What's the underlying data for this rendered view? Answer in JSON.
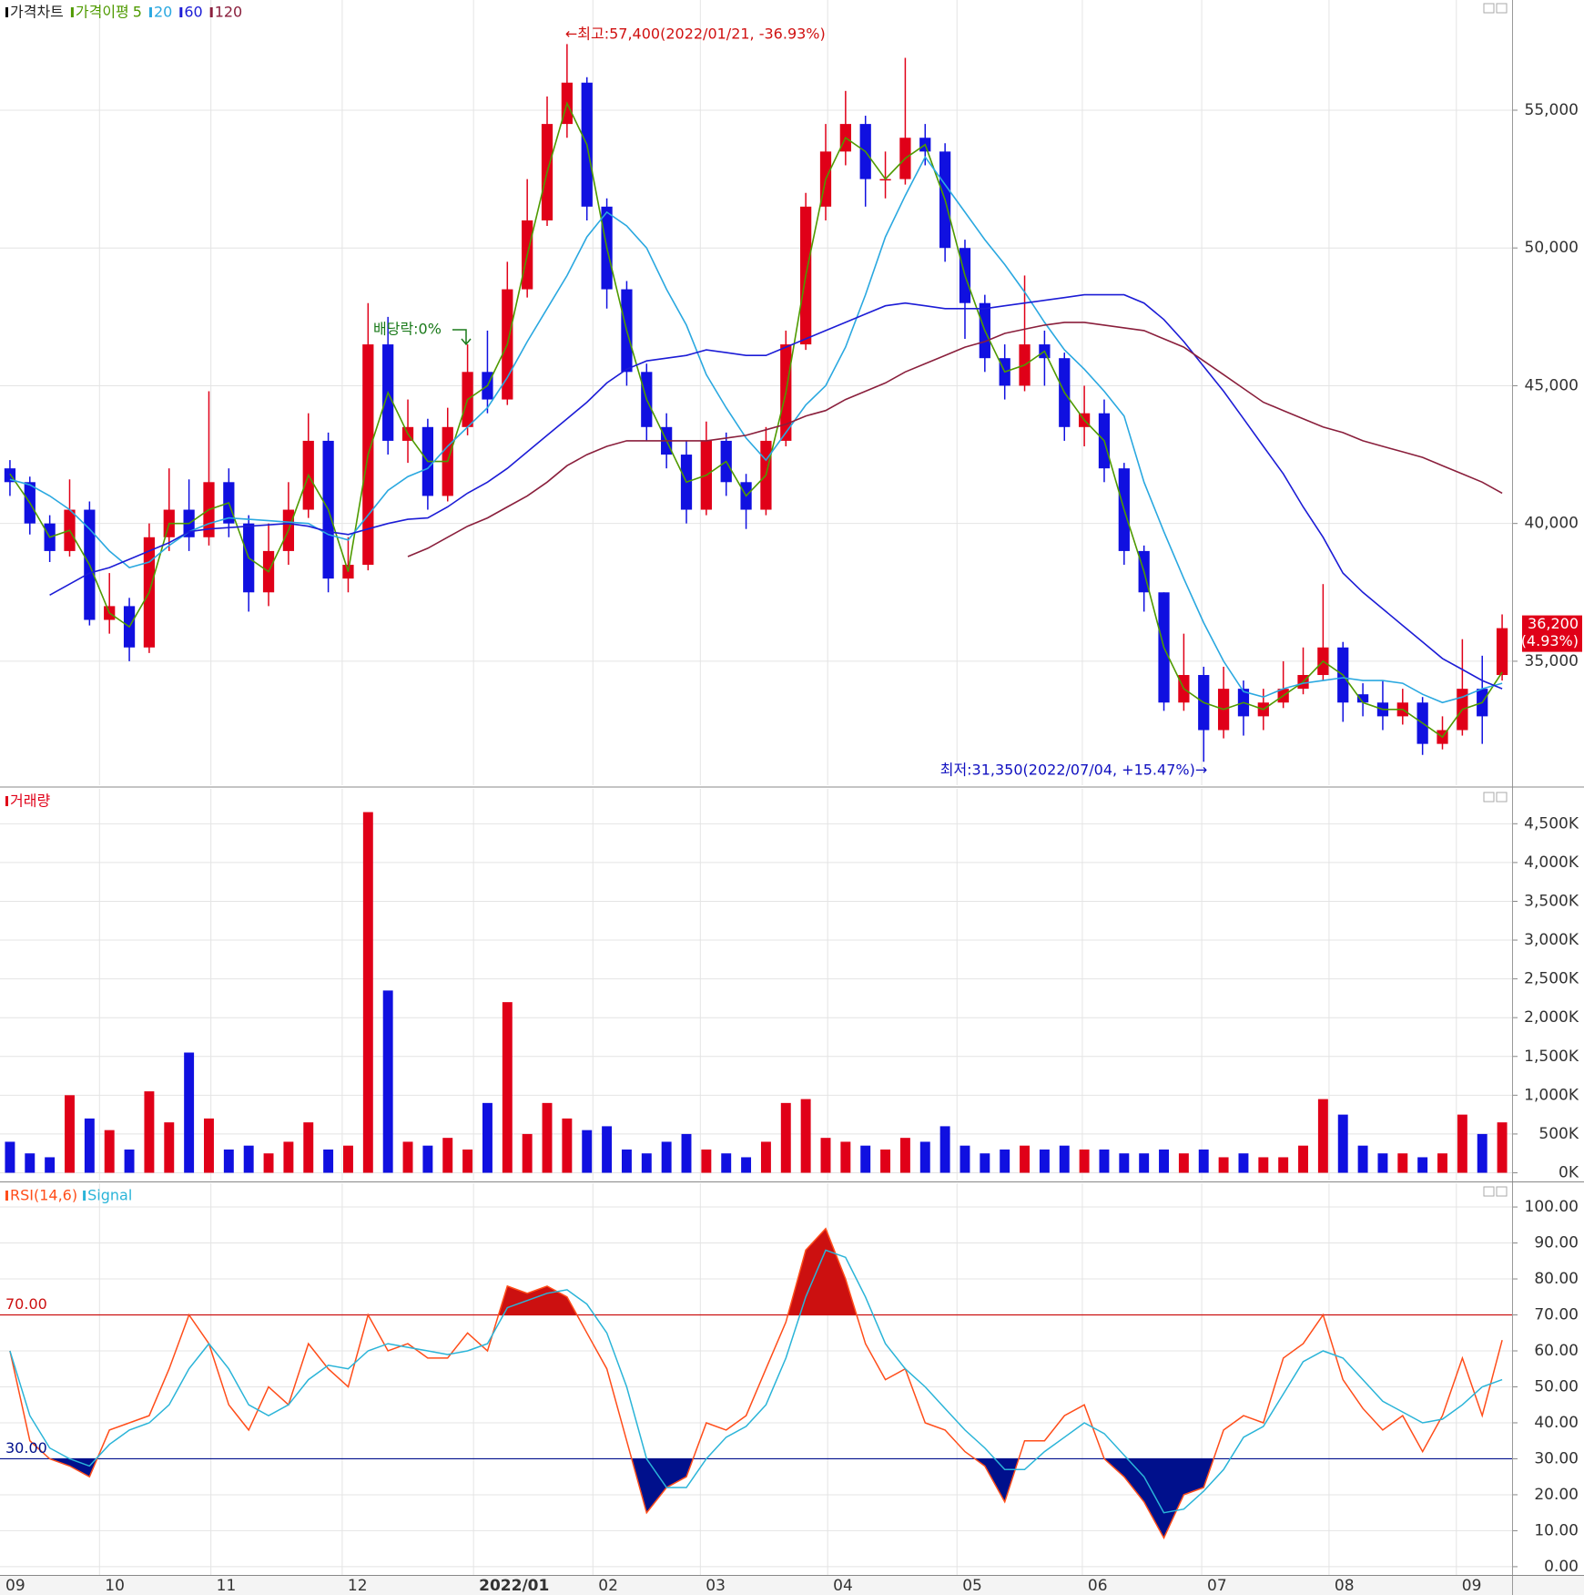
{
  "chart_data": [
    {
      "type": "candlestick",
      "title": "가격차트",
      "ma_label": "가격이평",
      "up_color": "#e00018",
      "down_color": "#1010e0",
      "open": [
        42000,
        41500,
        40000,
        39000,
        40500,
        36500,
        37000,
        35500,
        39500,
        40500,
        39500,
        41500,
        40000,
        37500,
        39000,
        40500,
        43000,
        38000,
        38500,
        46500,
        43000,
        43500,
        41000,
        43500,
        45500,
        44500,
        48500,
        51000,
        54500,
        56000,
        51500,
        48500,
        45500,
        43500,
        42500,
        40500,
        43000,
        41500,
        40500,
        43000,
        46500,
        51500,
        53500,
        54500,
        52500,
        52500,
        54000,
        53500,
        50000,
        48000,
        46000,
        45000,
        46500,
        46000,
        43500,
        44000,
        42000,
        39000,
        37500,
        33500,
        34500,
        32500,
        34000,
        33000,
        33500,
        34000,
        34500,
        35500,
        33800,
        33500,
        33000,
        33500,
        32000,
        32500,
        34000,
        34500
      ],
      "high": [
        42300,
        41700,
        40300,
        41600,
        40800,
        38200,
        37300,
        40000,
        42000,
        41600,
        44800,
        42000,
        40300,
        40000,
        41500,
        44000,
        43300,
        39500,
        48000,
        47500,
        44500,
        43800,
        44200,
        46500,
        47000,
        49500,
        52500,
        55500,
        57400,
        56200,
        51800,
        48800,
        45800,
        44000,
        43000,
        43700,
        43300,
        41800,
        43500,
        47000,
        52000,
        54500,
        55700,
        54800,
        53500,
        56900,
        54500,
        53800,
        50300,
        48300,
        46500,
        49000,
        47000,
        46200,
        45000,
        44500,
        42200,
        39200,
        37500,
        36000,
        34800,
        34800,
        34300,
        34000,
        35000,
        35500,
        37800,
        35700,
        34200,
        34300,
        34000,
        33700,
        33000,
        35800,
        35200,
        36700
      ],
      "low": [
        41000,
        39600,
        38600,
        38800,
        36300,
        36000,
        35000,
        35300,
        39000,
        39000,
        39200,
        39500,
        36800,
        37000,
        38500,
        40200,
        37500,
        37500,
        38300,
        42500,
        42200,
        40500,
        40800,
        43200,
        44000,
        44300,
        48200,
        50800,
        54000,
        51000,
        47800,
        45000,
        43000,
        42000,
        40000,
        40300,
        41000,
        39800,
        40300,
        42800,
        46300,
        51000,
        53000,
        51500,
        51800,
        52300,
        53000,
        49500,
        46700,
        45500,
        44500,
        44800,
        45000,
        43000,
        42800,
        41500,
        38500,
        36800,
        33200,
        33200,
        31350,
        32200,
        32300,
        32500,
        33300,
        33800,
        34300,
        32800,
        33000,
        32500,
        32700,
        31600,
        31800,
        32300,
        32000,
        34300
      ],
      "close": [
        41500,
        40000,
        39000,
        40500,
        36500,
        37000,
        35500,
        39500,
        40500,
        39500,
        41500,
        40000,
        37500,
        39000,
        40500,
        43000,
        38000,
        38500,
        46500,
        43000,
        43500,
        41000,
        43500,
        45500,
        44500,
        48500,
        51000,
        54500,
        56000,
        51500,
        48500,
        45500,
        43500,
        42500,
        40500,
        43000,
        41500,
        40500,
        43000,
        46500,
        51500,
        53500,
        54500,
        52500,
        52500,
        54000,
        53500,
        50000,
        48000,
        46000,
        45000,
        46500,
        46000,
        43500,
        44000,
        42000,
        39000,
        37500,
        33500,
        34500,
        32500,
        34000,
        33000,
        33500,
        34000,
        34500,
        35500,
        33500,
        33500,
        33000,
        33500,
        32000,
        32500,
        34000,
        33000,
        36200
      ],
      "series": [
        {
          "name": "5",
          "color": "#4f9a00",
          "values": [
            41800,
            40750,
            39500,
            39750,
            38500,
            36750,
            36250,
            37500,
            40000,
            40000,
            40500,
            40750,
            38750,
            38250,
            39750,
            41750,
            40500,
            38250,
            42500,
            44750,
            43250,
            42250,
            42250,
            44500,
            45000,
            46500,
            49750,
            52750,
            55250,
            53750,
            50000,
            47000,
            44500,
            43000,
            41500,
            41750,
            42250,
            41000,
            41750,
            44750,
            49000,
            52500,
            54000,
            53500,
            52500,
            53250,
            53750,
            51750,
            49000,
            47000,
            45500,
            45750,
            46250,
            44750,
            43750,
            43000,
            40500,
            38250,
            35500,
            34000,
            33500,
            33250,
            33500,
            33250,
            33750,
            34250,
            35000,
            34500,
            33500,
            33250,
            33250,
            32750,
            32250,
            33250,
            33500,
            34600
          ]
        },
        {
          "name": "20",
          "color": "#2aa8e0",
          "values": [
            41600,
            41400,
            41000,
            40500,
            39800,
            39000,
            38400,
            38600,
            39200,
            39700,
            40000,
            40200,
            40150,
            40100,
            40050,
            40000,
            39600,
            39400,
            40300,
            41200,
            41700,
            42000,
            42800,
            43500,
            44200,
            45300,
            46600,
            47800,
            49000,
            50400,
            51300,
            50800,
            50000,
            48500,
            47200,
            45400,
            44200,
            43100,
            42300,
            43300,
            44300,
            45000,
            46400,
            48300,
            50400,
            51900,
            53300,
            52300,
            51300,
            50300,
            49400,
            48400,
            47300,
            46300,
            45600,
            44800,
            43900,
            41500,
            39700,
            38000,
            36400,
            35000,
            33900,
            33700,
            34000,
            34200,
            34300,
            34400,
            34300,
            34300,
            34200,
            33800,
            33500,
            33700,
            34000,
            34200
          ]
        },
        {
          "name": "60",
          "color": "#1c1cd6",
          "values": [
            null,
            null,
            37400,
            37800,
            38200,
            38400,
            38700,
            39000,
            39300,
            39700,
            39800,
            39850,
            39900,
            39950,
            40000,
            39900,
            39700,
            39600,
            39800,
            40000,
            40150,
            40200,
            40600,
            41100,
            41500,
            42000,
            42600,
            43200,
            43800,
            44400,
            45100,
            45600,
            45900,
            46000,
            46100,
            46300,
            46200,
            46100,
            46100,
            46400,
            46700,
            47000,
            47300,
            47600,
            47900,
            48000,
            47900,
            47800,
            47800,
            47800,
            47900,
            48000,
            48100,
            48200,
            48300,
            48300,
            48300,
            48000,
            47400,
            46600,
            45700,
            44800,
            43800,
            42800,
            41800,
            40600,
            39500,
            38200,
            37500,
            36900,
            36300,
            35700,
            35100,
            34700,
            34300,
            34000
          ]
        },
        {
          "name": "120",
          "color": "#8a1f3c",
          "values": [
            null,
            null,
            null,
            null,
            null,
            null,
            null,
            null,
            null,
            null,
            null,
            null,
            null,
            null,
            null,
            null,
            null,
            null,
            null,
            null,
            38800,
            39100,
            39500,
            39900,
            40200,
            40600,
            41000,
            41500,
            42100,
            42500,
            42800,
            43000,
            43000,
            43000,
            43000,
            43000,
            43100,
            43200,
            43400,
            43600,
            43900,
            44100,
            44500,
            44800,
            45100,
            45500,
            45800,
            46100,
            46400,
            46600,
            46900,
            47050,
            47200,
            47300,
            47300,
            47200,
            47100,
            47000,
            46700,
            46400,
            45900,
            45400,
            44900,
            44400,
            44100,
            43800,
            43500,
            43300,
            43000,
            42800,
            42600,
            42400,
            42100,
            41800,
            41500,
            41100
          ]
        }
      ],
      "high_label": "←최고:57,400(2022/01/21, -36.93%)",
      "low_label": "최저:31,350(2022/07/04, +15.47%)→",
      "dividend_label": "배당락:0%",
      "last": {
        "value": 36200,
        "label": "36,200"
      },
      "last_change": "(4.93%)",
      "ylim": [
        30500,
        59000
      ],
      "yticks": [
        {
          "value": 35000,
          "label": "35,000"
        },
        {
          "value": 40000,
          "label": "40,000"
        },
        {
          "value": 45000,
          "label": "45,000"
        },
        {
          "value": 50000,
          "label": "50,000"
        },
        {
          "value": 55000,
          "label": "55,000"
        }
      ],
      "xlim": [
        0,
        76
      ],
      "grid": true
    },
    {
      "type": "bar",
      "title": "거래량",
      "values": [
        400,
        250,
        200,
        1000,
        700,
        550,
        300,
        1050,
        650,
        1550,
        700,
        300,
        350,
        250,
        400,
        650,
        300,
        350,
        4650,
        2350,
        400,
        350,
        450,
        300,
        900,
        2200,
        500,
        900,
        700,
        550,
        600,
        300,
        250,
        400,
        500,
        300,
        250,
        200,
        400,
        900,
        950,
        450,
        400,
        350,
        300,
        450,
        400,
        600,
        350,
        250,
        300,
        350,
        300,
        350,
        300,
        300,
        250,
        250,
        300,
        250,
        300,
        200,
        250,
        200,
        200,
        350,
        950,
        750,
        350,
        250,
        250,
        200,
        250,
        750,
        500,
        650
      ],
      "ylim": [
        -100,
        4950
      ],
      "yticks": [
        {
          "value": 0,
          "label": "0K"
        },
        {
          "value": 500,
          "label": "500K"
        },
        {
          "value": 1000,
          "label": "1,000K"
        },
        {
          "value": 1500,
          "label": "1,500K"
        },
        {
          "value": 2000,
          "label": "2,000K"
        },
        {
          "value": 2500,
          "label": "2,500K"
        },
        {
          "value": 3000,
          "label": "3,000K"
        },
        {
          "value": 3500,
          "label": "3,500K"
        },
        {
          "value": 4000,
          "label": "4,000K"
        },
        {
          "value": 4500,
          "label": "4,500K"
        }
      ],
      "xlim": [
        0,
        76
      ],
      "grid": true
    },
    {
      "type": "line",
      "series": [
        {
          "name": "RSI(14,6)",
          "color": "#ff4d1a",
          "values": [
            60,
            35,
            30,
            28,
            25,
            38,
            40,
            42,
            55,
            70,
            62,
            45,
            38,
            50,
            45,
            62,
            55,
            50,
            70,
            60,
            62,
            58,
            58,
            65,
            60,
            78,
            76,
            78,
            75,
            65,
            55,
            35,
            15,
            22,
            25,
            40,
            38,
            42,
            55,
            68,
            88,
            94,
            80,
            62,
            52,
            55,
            40,
            38,
            32,
            28,
            18,
            35,
            35,
            42,
            45,
            30,
            25,
            18,
            8,
            20,
            22,
            38,
            42,
            40,
            58,
            62,
            70,
            52,
            44,
            38,
            42,
            32,
            42,
            58,
            42,
            63
          ]
        },
        {
          "name": "Signal",
          "color": "#2ab4d8",
          "values": [
            60,
            42,
            33,
            30,
            28,
            34,
            38,
            40,
            45,
            55,
            62,
            55,
            45,
            42,
            45,
            52,
            56,
            55,
            60,
            62,
            61,
            60,
            59,
            60,
            62,
            72,
            74,
            76,
            77,
            73,
            65,
            50,
            30,
            22,
            22,
            30,
            36,
            39,
            45,
            58,
            75,
            88,
            86,
            75,
            62,
            55,
            50,
            44,
            38,
            33,
            27,
            27,
            32,
            36,
            40,
            37,
            31,
            25,
            15,
            16,
            21,
            27,
            36,
            39,
            48,
            57,
            60,
            58,
            52,
            46,
            43,
            40,
            41,
            45,
            50,
            52
          ]
        }
      ],
      "levels": [
        {
          "value": 70,
          "label": "70.00",
          "color": "#cc1010"
        },
        {
          "value": 30,
          "label": "30.00",
          "color": "#00108c"
        }
      ],
      "ylim": [
        -2.3,
        106.6
      ],
      "yticks": [
        {
          "value": 0,
          "label": "0.00"
        },
        {
          "value": 10,
          "label": "10.00"
        },
        {
          "value": 20,
          "label": "20.00"
        },
        {
          "value": 30,
          "label": "30.00"
        },
        {
          "value": 40,
          "label": "40.00"
        },
        {
          "value": 50,
          "label": "50.00"
        },
        {
          "value": 60,
          "label": "60.00"
        },
        {
          "value": 70,
          "label": "70.00"
        },
        {
          "value": 80,
          "label": "80.00"
        },
        {
          "value": 90,
          "label": "90.00"
        },
        {
          "value": 100,
          "label": "100.00"
        }
      ],
      "xlim": [
        0,
        76
      ],
      "xticks": [
        {
          "value": 0,
          "label": "09"
        },
        {
          "value": 5.0,
          "label": "10"
        },
        {
          "value": 10.6,
          "label": "11"
        },
        {
          "value": 17.2,
          "label": "12"
        },
        {
          "value": 23.8,
          "label": "2022/01"
        },
        {
          "value": 29.8,
          "label": "02"
        },
        {
          "value": 35.2,
          "label": "03"
        },
        {
          "value": 41.6,
          "label": "04"
        },
        {
          "value": 48.1,
          "label": "05"
        },
        {
          "value": 54.4,
          "label": "06"
        },
        {
          "value": 60.4,
          "label": "07"
        },
        {
          "value": 66.8,
          "label": "08"
        },
        {
          "value": 73.2,
          "label": "09"
        }
      ],
      "grid": true
    }
  ]
}
